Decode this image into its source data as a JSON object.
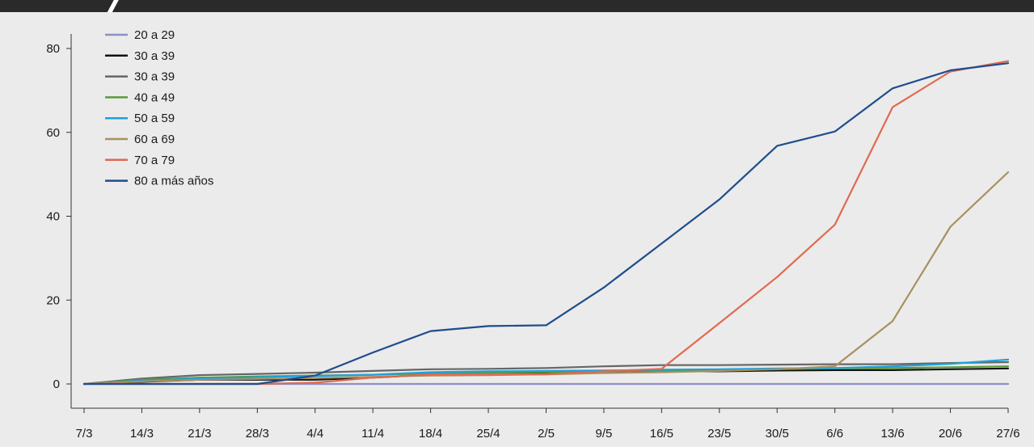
{
  "chart_data": {
    "type": "line",
    "title": "",
    "xlabel": "",
    "ylabel": "",
    "categories": [
      "7/3",
      "14/3",
      "21/3",
      "28/3",
      "4/4",
      "11/4",
      "18/4",
      "25/4",
      "2/5",
      "9/5",
      "16/5",
      "23/5",
      "30/5",
      "6/6",
      "13/6",
      "20/6",
      "27/6"
    ],
    "yticks": [
      "0",
      "20",
      "40",
      "60",
      "80"
    ],
    "ylim": [
      0,
      83
    ],
    "grid": false,
    "legend_position": "top-left",
    "series": [
      {
        "name": "20 a 29",
        "color": "#8e8ec8",
        "values": [
          0,
          0,
          0,
          0,
          0,
          0,
          0,
          0,
          0,
          0,
          0,
          0,
          0,
          0,
          0,
          0,
          0
        ]
      },
      {
        "name": "30 a 39",
        "color": "#111111",
        "values": [
          0,
          0.5,
          1,
          1,
          1,
          1.5,
          2.2,
          2.3,
          2.5,
          2.8,
          3,
          3,
          3.2,
          3.3,
          3.3,
          3.5,
          3.7
        ]
      },
      {
        "name": "30 a 39",
        "color": "#666666",
        "values": [
          0,
          1.3,
          2.1,
          2.4,
          2.7,
          3.1,
          3.5,
          3.6,
          3.8,
          4.2,
          4.5,
          4.5,
          4.6,
          4.7,
          4.7,
          5,
          5.2
        ]
      },
      {
        "name": "40 a 49",
        "color": "#5a9a3c",
        "values": [
          0,
          1,
          1.5,
          1.8,
          2,
          2.2,
          2.5,
          2.7,
          2.8,
          3,
          3.2,
          3.3,
          3.5,
          3.7,
          3.8,
          4,
          4.2
        ]
      },
      {
        "name": "50 a 59",
        "color": "#1ea0dc",
        "values": [
          0,
          0.8,
          1.3,
          1.6,
          1.9,
          2.2,
          2.8,
          3,
          3.1,
          3.2,
          3.4,
          3.5,
          3.7,
          3.8,
          4.2,
          4.8,
          5.8
        ]
      },
      {
        "name": "60 a 69",
        "color": "#a89060",
        "values": [
          0,
          0.6,
          1,
          1.2,
          1.4,
          1.7,
          2,
          2.1,
          2.3,
          2.6,
          2.8,
          3.1,
          3.5,
          4.2,
          15,
          37.5,
          50.5
        ]
      },
      {
        "name": "70 a 79",
        "color": "#e06a50",
        "values": [
          0,
          0,
          0,
          0,
          0.3,
          1.5,
          2.3,
          2.3,
          2.3,
          3,
          3.6,
          14.5,
          25.5,
          38,
          66,
          74.5,
          77
        ]
      },
      {
        "name": "80 a más años",
        "color": "#1f4d8c",
        "values": [
          0,
          0,
          0,
          0,
          2,
          7.5,
          12.6,
          13.8,
          14,
          23,
          33.5,
          44,
          56.8,
          60.2,
          70.5,
          74.8,
          76.5
        ]
      }
    ]
  }
}
